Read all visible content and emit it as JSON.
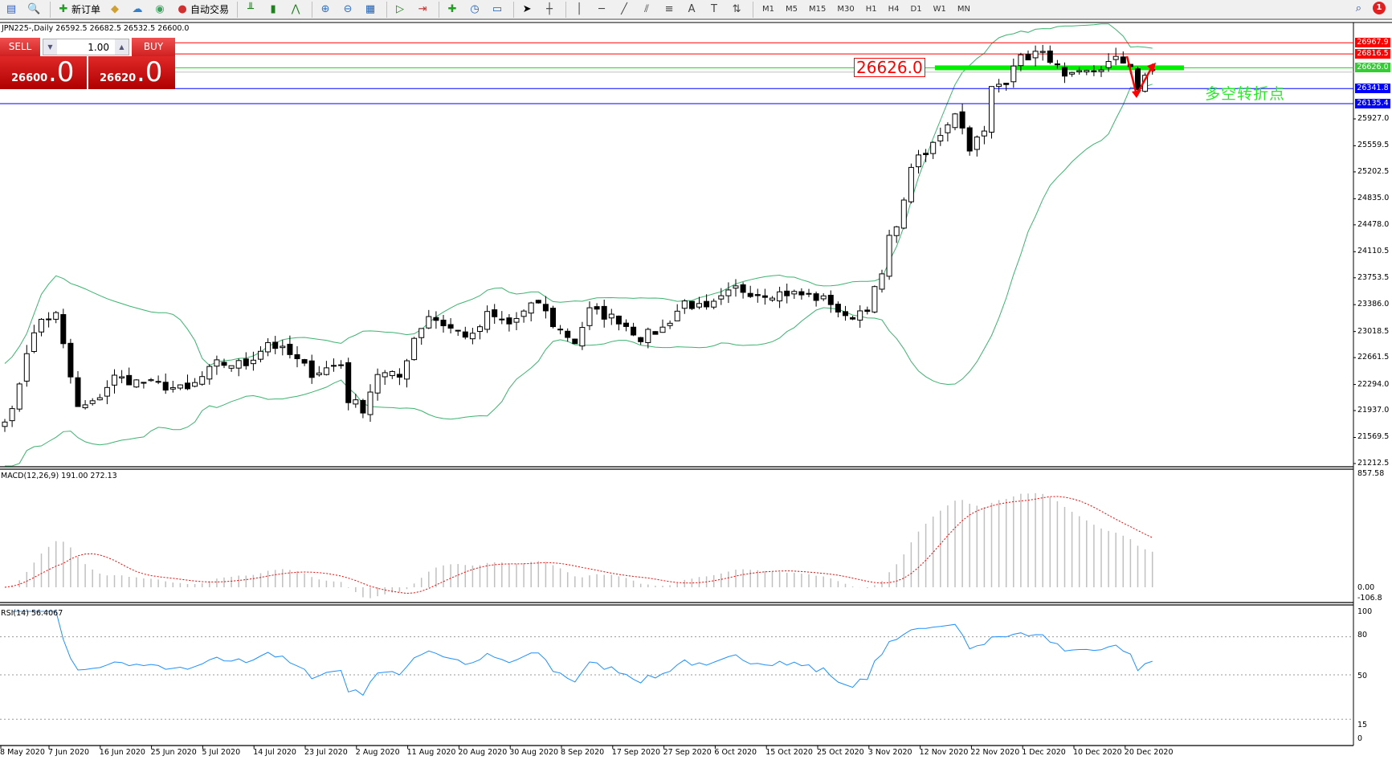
{
  "toolbar": {
    "items": [
      {
        "icon": "chart-window-icon",
        "glyph": "▤",
        "color": "#3060c0"
      },
      {
        "icon": "zoom-chart-icon",
        "glyph": "🔍",
        "color": "#606060"
      },
      {
        "icon": "new-order-icon",
        "glyph": "✚",
        "color": "#20a020",
        "label": "新订单"
      },
      {
        "icon": "gold-icon",
        "glyph": "◆",
        "color": "#d0a030"
      },
      {
        "icon": "terminal-icon",
        "glyph": "☁",
        "color": "#3080d0"
      },
      {
        "icon": "signal-icon",
        "glyph": "◉",
        "color": "#40a060"
      },
      {
        "icon": "auto-trading-icon",
        "glyph": "●",
        "color": "#d03030",
        "label": "自动交易"
      },
      {
        "icon": "bar-chart-icon",
        "glyph": "╨",
        "color": "#208020"
      },
      {
        "icon": "candlestick-icon",
        "glyph": "▮",
        "color": "#208020"
      },
      {
        "icon": "line-chart-icon",
        "glyph": "⋀",
        "color": "#208020"
      },
      {
        "icon": "zoom-in-icon",
        "glyph": "⊕",
        "color": "#3070c0"
      },
      {
        "icon": "zoom-out-icon",
        "glyph": "⊖",
        "color": "#3070c0"
      },
      {
        "icon": "tile-windows-icon",
        "glyph": "▦",
        "color": "#2060b0"
      },
      {
        "icon": "autoscroll-icon",
        "glyph": "▷",
        "color": "#208020"
      },
      {
        "icon": "chart-shift-icon",
        "glyph": "⇥",
        "color": "#c03030"
      },
      {
        "icon": "indicators-icon",
        "glyph": "✚",
        "color": "#20a020"
      },
      {
        "icon": "periods-icon",
        "glyph": "◷",
        "color": "#2060c0"
      },
      {
        "icon": "templates-icon",
        "glyph": "▭",
        "color": "#2060b0"
      },
      {
        "icon": "cursor-icon",
        "glyph": "➤",
        "color": "#000"
      },
      {
        "icon": "crosshair-icon",
        "glyph": "┼",
        "color": "#444"
      },
      {
        "icon": "vertical-line-icon",
        "glyph": "│",
        "color": "#444"
      },
      {
        "icon": "horizontal-line-icon",
        "glyph": "─",
        "color": "#444"
      },
      {
        "icon": "trendline-icon",
        "glyph": "╱",
        "color": "#444"
      },
      {
        "icon": "equidistant-channel-icon",
        "glyph": "⫽",
        "color": "#444"
      },
      {
        "icon": "fibonacci-icon",
        "glyph": "≡",
        "color": "#444"
      },
      {
        "icon": "text-icon",
        "glyph": "A",
        "color": "#444"
      },
      {
        "icon": "text-label-icon",
        "glyph": "T",
        "color": "#444"
      },
      {
        "icon": "arrows-icon",
        "glyph": "⇅",
        "color": "#444"
      }
    ],
    "timeframes": [
      "M1",
      "M5",
      "M15",
      "M30",
      "H1",
      "H4",
      "D1",
      "W1",
      "MN"
    ],
    "notifications": "1"
  },
  "chart": {
    "title": "JPN225-,Daily  26592.5 26682.5 26532.5 26600.0",
    "symbol": "JPN225-",
    "period": "Daily",
    "ohlc": {
      "open": 26592.5,
      "high": 26682.5,
      "low": 26532.5,
      "close": 26600.0
    }
  },
  "trade_panel": {
    "sell_label": "SELL",
    "buy_label": "BUY",
    "lot": "1.00",
    "sell_price_small": "26600",
    "sell_price_big": ".0",
    "buy_price_small": "26620",
    "buy_price_big": ".0"
  },
  "price_axis": [
    "25927.0",
    "25559.5",
    "25202.5",
    "24835.0",
    "24478.0",
    "24110.5",
    "23753.5",
    "23386.0",
    "23018.5",
    "22661.5",
    "22294.0",
    "21937.0",
    "21569.5",
    "21212.5"
  ],
  "levels": [
    {
      "price": 26967.9,
      "label": "26967.9",
      "color": "#ff0000"
    },
    {
      "price": 26816.5,
      "label": "26816.5",
      "color": "#ff0000"
    },
    {
      "price": 26626.0,
      "label": "26626.0",
      "color": "#22cc22"
    },
    {
      "price": 26341.8,
      "label": "26341.8",
      "color": "#0000ff"
    },
    {
      "price": 26135.4,
      "label": "26135.4",
      "color": "#0000ff"
    }
  ],
  "annotation": {
    "price_label": "26626.0",
    "text": "多空转折点"
  },
  "close_keypoints": [
    [
      0,
      21850
    ],
    [
      1,
      21905
    ],
    [
      3,
      22756
    ],
    [
      5,
      23181
    ],
    [
      7,
      23242
    ],
    [
      10,
      21966
    ],
    [
      12,
      22027
    ],
    [
      15,
      22392
    ],
    [
      18,
      22331
    ],
    [
      22,
      22270
    ],
    [
      25,
      22209
    ],
    [
      29,
      22574
    ],
    [
      33,
      22574
    ],
    [
      36,
      22877
    ],
    [
      39,
      22695
    ],
    [
      42,
      22452
    ],
    [
      46,
      22574
    ],
    [
      47,
      22088
    ],
    [
      49,
      21966
    ],
    [
      51,
      22452
    ],
    [
      54,
      22392
    ],
    [
      56,
      22938
    ],
    [
      58,
      23242
    ],
    [
      61,
      23060
    ],
    [
      64,
      22938
    ],
    [
      66,
      23242
    ],
    [
      69,
      23120
    ],
    [
      73,
      23424
    ],
    [
      75,
      23120
    ],
    [
      78,
      22877
    ],
    [
      80,
      23302
    ],
    [
      84,
      23181
    ],
    [
      87,
      22938
    ],
    [
      90,
      23060
    ],
    [
      93,
      23424
    ],
    [
      96,
      23302
    ],
    [
      100,
      23606
    ],
    [
      103,
      23545
    ],
    [
      107,
      23545
    ],
    [
      110,
      23509
    ],
    [
      113,
      23424
    ],
    [
      115,
      23181
    ],
    [
      118,
      23363
    ],
    [
      120,
      23788
    ],
    [
      121,
      24275
    ],
    [
      123,
      24761
    ],
    [
      124,
      25307
    ],
    [
      126,
      25429
    ],
    [
      128,
      25733
    ],
    [
      130,
      26036
    ],
    [
      132,
      25550
    ],
    [
      134,
      25733
    ],
    [
      135,
      26340
    ],
    [
      137,
      26462
    ],
    [
      138,
      26705
    ],
    [
      141,
      26826
    ],
    [
      143,
      26765
    ],
    [
      145,
      26462
    ],
    [
      147,
      26523
    ],
    [
      149,
      26583
    ],
    [
      152,
      26729
    ],
    [
      154,
      26680
    ],
    [
      155,
      26340
    ],
    [
      157,
      26600
    ]
  ],
  "macd": {
    "label": "MACD(12,26,9) 191.00 272.13",
    "axis_top": "857.58",
    "axis_zero": "0.00",
    "axis_bottom": "-106.8",
    "max": 857.58,
    "min": -106.8
  },
  "rsi": {
    "label": "RSI(14) 56.4067",
    "levels": [
      "100",
      "80",
      "50",
      "15",
      "0"
    ]
  },
  "dates": [
    "8 May 2020",
    "7 Jun 2020",
    "16 Jun 2020",
    "25 Jun 2020",
    "5 Jul 2020",
    "14 Jul 2020",
    "23 Jul 2020",
    "2 Aug 2020",
    "11 Aug 2020",
    "20 Aug 2020",
    "30 Aug 2020",
    "8 Sep 2020",
    "17 Sep 2020",
    "27 Sep 2020",
    "6 Oct 2020",
    "15 Oct 2020",
    "25 Oct 2020",
    "3 Nov 2020",
    "12 Nov 2020",
    "22 Nov 2020",
    "1 Dec 2020",
    "10 Dec 2020",
    "20 Dec 2020"
  ],
  "colors": {
    "bands": "#3cb371",
    "macd_hist": "#c0c0c0",
    "macd_signal": "#ff0000",
    "rsi": "#1e90ff",
    "highlight": "#00ee00"
  }
}
